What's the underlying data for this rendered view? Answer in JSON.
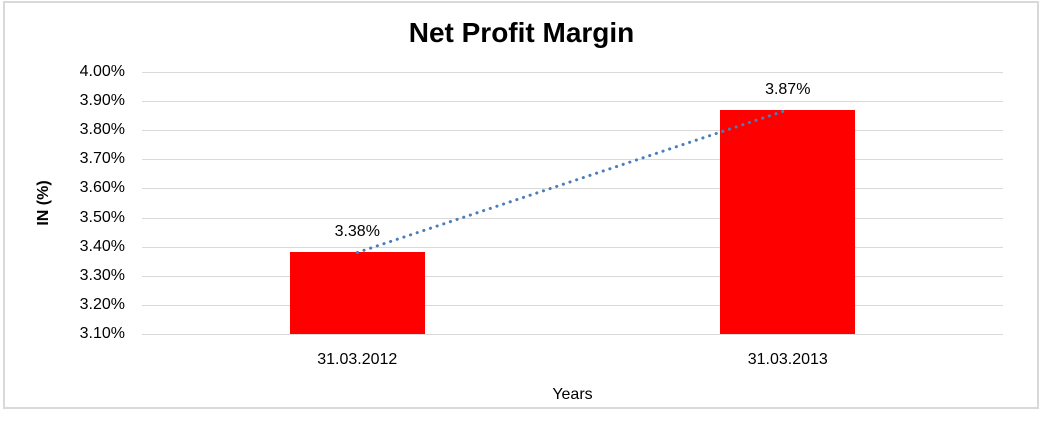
{
  "chart_data": {
    "type": "bar",
    "title": "Net Profit Margin",
    "xlabel": "Years",
    "ylabel": "IN (%)",
    "categories": [
      "31.03.2012",
      "31.03.2013"
    ],
    "values": [
      3.38,
      3.87
    ],
    "value_labels": [
      "3.38%",
      "3.87%"
    ],
    "yticks": [
      "4.00%",
      "3.90%",
      "3.80%",
      "3.70%",
      "3.60%",
      "3.50%",
      "3.40%",
      "3.30%",
      "3.20%",
      "3.10%"
    ],
    "ylim": [
      3.1,
      4.0
    ],
    "grid": "horizontal",
    "legend": "none",
    "trendline": "dotted line connecting bar tops",
    "colors": {
      "bar": "#ff0000",
      "trendline": "#4a7ebb",
      "gridline": "#d9d9d9",
      "border": "#d9d9d9",
      "text": "#000000",
      "background": "#ffffff"
    }
  }
}
